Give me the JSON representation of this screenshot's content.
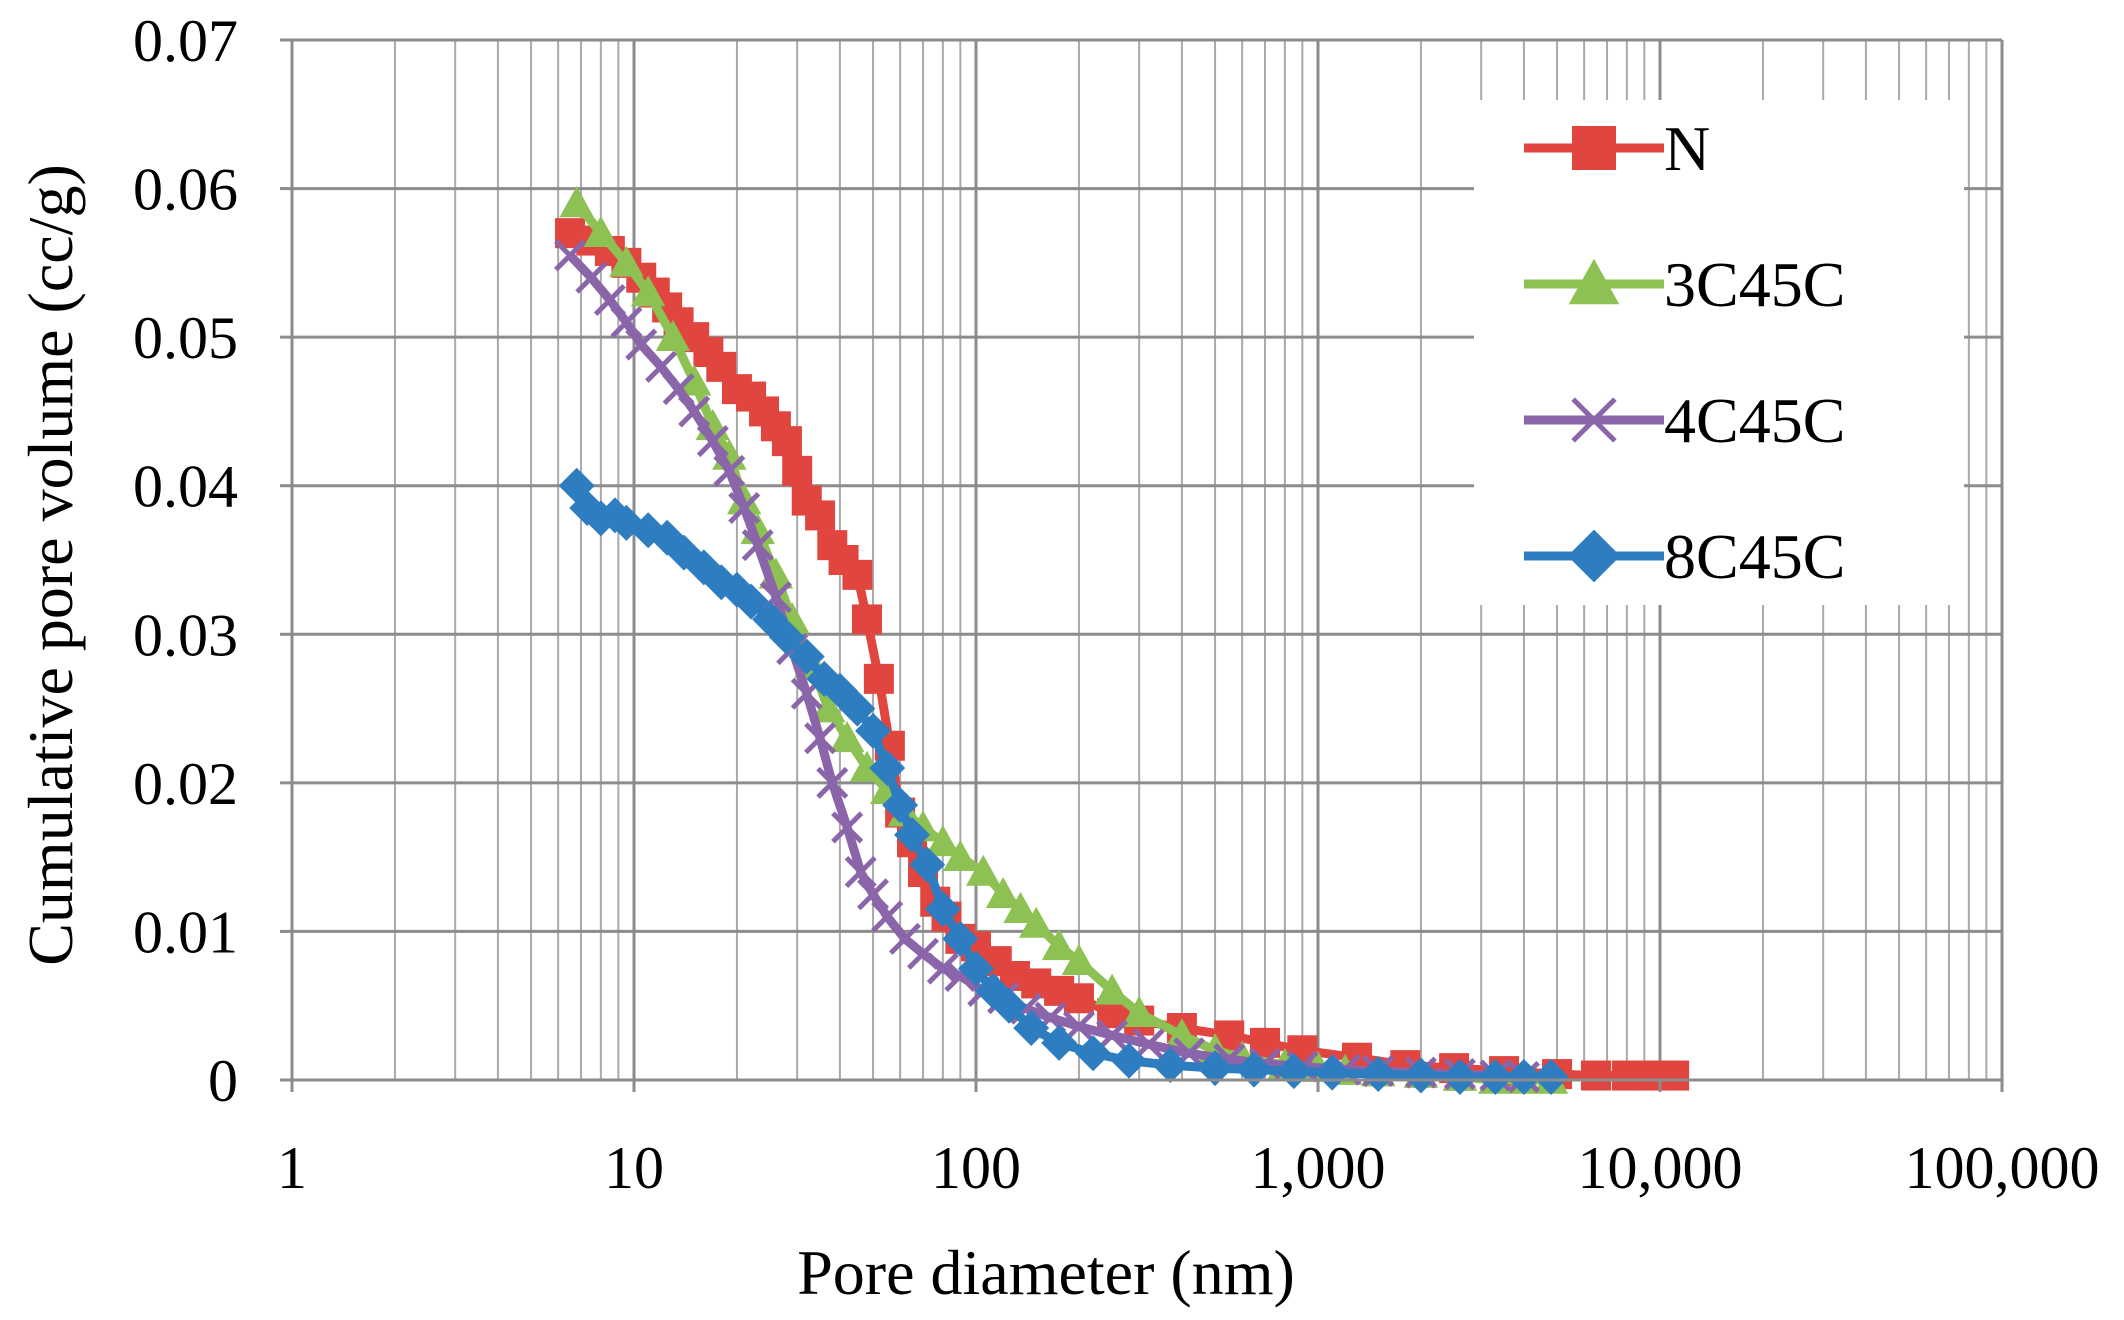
{
  "chart_data": {
    "type": "line",
    "title": "",
    "xlabel": "Pore diameter (nm)",
    "ylabel": "Cumulative pore volume (cc/g)",
    "xscale": "log",
    "xlim": [
      1,
      100000
    ],
    "ylim": [
      0,
      0.07
    ],
    "grid": true,
    "legend_position": "top-right",
    "x_ticks": [
      1,
      10,
      100,
      1000,
      10000,
      100000
    ],
    "x_tick_labels": [
      "1",
      "10",
      "100",
      "1,000",
      "10,000",
      "100,000"
    ],
    "y_ticks": [
      0,
      0.01,
      0.02,
      0.03,
      0.04,
      0.05,
      0.06,
      0.07
    ],
    "y_tick_labels": [
      "0",
      "0.01",
      "0.02",
      "0.03",
      "0.04",
      "0.05",
      "0.06",
      "0.07"
    ],
    "series": [
      {
        "name": "N",
        "color": "#E0463F",
        "marker": "square",
        "points": [
          [
            6.5,
            0.057
          ],
          [
            7.5,
            0.0565
          ],
          [
            8.5,
            0.0558
          ],
          [
            9.5,
            0.055
          ],
          [
            10.5,
            0.054
          ],
          [
            11.5,
            0.053
          ],
          [
            12.5,
            0.052
          ],
          [
            13.5,
            0.051
          ],
          [
            15,
            0.05
          ],
          [
            16.5,
            0.049
          ],
          [
            18,
            0.048
          ],
          [
            20,
            0.0465
          ],
          [
            22,
            0.046
          ],
          [
            24,
            0.045
          ],
          [
            26,
            0.044
          ],
          [
            28,
            0.043
          ],
          [
            30,
            0.041
          ],
          [
            32,
            0.039
          ],
          [
            35,
            0.038
          ],
          [
            38,
            0.036
          ],
          [
            41,
            0.035
          ],
          [
            45,
            0.034
          ],
          [
            48,
            0.031
          ],
          [
            52,
            0.027
          ],
          [
            56,
            0.0225
          ],
          [
            60,
            0.018
          ],
          [
            65,
            0.016
          ],
          [
            70,
            0.014
          ],
          [
            76,
            0.012
          ],
          [
            82,
            0.011
          ],
          [
            90,
            0.0095
          ],
          [
            100,
            0.009
          ],
          [
            115,
            0.008
          ],
          [
            130,
            0.007
          ],
          [
            150,
            0.0065
          ],
          [
            175,
            0.006
          ],
          [
            200,
            0.0055
          ],
          [
            250,
            0.0045
          ],
          [
            300,
            0.004
          ],
          [
            400,
            0.0035
          ],
          [
            550,
            0.003
          ],
          [
            700,
            0.0025
          ],
          [
            900,
            0.002
          ],
          [
            1300,
            0.0015
          ],
          [
            1800,
            0.001
          ],
          [
            2500,
            0.0008
          ],
          [
            3500,
            0.0006
          ],
          [
            5000,
            0.0004
          ],
          [
            6500,
            0.0003
          ],
          [
            8000,
            0.0003
          ],
          [
            9500,
            0.0003
          ],
          [
            11000,
            0.0003
          ]
        ]
      },
      {
        "name": "3C45C",
        "color": "#8DC153",
        "marker": "triangle",
        "points": [
          [
            6.8,
            0.059
          ],
          [
            8,
            0.057
          ],
          [
            9.5,
            0.055
          ],
          [
            11,
            0.053
          ],
          [
            13,
            0.05
          ],
          [
            15,
            0.047
          ],
          [
            17,
            0.044
          ],
          [
            19,
            0.042
          ],
          [
            21,
            0.039
          ],
          [
            23,
            0.037
          ],
          [
            26,
            0.034
          ],
          [
            29,
            0.031
          ],
          [
            33,
            0.028
          ],
          [
            37,
            0.025
          ],
          [
            42,
            0.023
          ],
          [
            48,
            0.021
          ],
          [
            55,
            0.0195
          ],
          [
            62,
            0.018
          ],
          [
            70,
            0.017
          ],
          [
            80,
            0.016
          ],
          [
            90,
            0.015
          ],
          [
            105,
            0.014
          ],
          [
            120,
            0.0125
          ],
          [
            135,
            0.0115
          ],
          [
            150,
            0.0105
          ],
          [
            175,
            0.009
          ],
          [
            200,
            0.008
          ],
          [
            250,
            0.006
          ],
          [
            300,
            0.0045
          ],
          [
            400,
            0.003
          ],
          [
            500,
            0.002
          ],
          [
            600,
            0.0015
          ],
          [
            800,
            0.001
          ],
          [
            1000,
            0.0008
          ],
          [
            1200,
            0.0006
          ],
          [
            1500,
            0.0005
          ],
          [
            2000,
            0.0004
          ],
          [
            2600,
            0.0002
          ],
          [
            3300,
            0
          ],
          [
            4000,
            0
          ],
          [
            4800,
            0
          ]
        ]
      },
      {
        "name": "4C45C",
        "color": "#8A65AA",
        "marker": "x",
        "points": [
          [
            6.5,
            0.0555
          ],
          [
            7.5,
            0.054
          ],
          [
            8.5,
            0.0525
          ],
          [
            9.5,
            0.051
          ],
          [
            10.5,
            0.0495
          ],
          [
            12,
            0.048
          ],
          [
            13.5,
            0.0465
          ],
          [
            15,
            0.045
          ],
          [
            17,
            0.043
          ],
          [
            19,
            0.041
          ],
          [
            21,
            0.0385
          ],
          [
            23,
            0.036
          ],
          [
            26,
            0.0325
          ],
          [
            29,
            0.029
          ],
          [
            32,
            0.026
          ],
          [
            35,
            0.023
          ],
          [
            38,
            0.02
          ],
          [
            42,
            0.017
          ],
          [
            46,
            0.014
          ],
          [
            50,
            0.0125
          ],
          [
            55,
            0.011
          ],
          [
            62,
            0.0095
          ],
          [
            70,
            0.0085
          ],
          [
            80,
            0.0075
          ],
          [
            90,
            0.007
          ],
          [
            105,
            0.006
          ],
          [
            120,
            0.0055
          ],
          [
            140,
            0.0048
          ],
          [
            165,
            0.0042
          ],
          [
            200,
            0.0036
          ],
          [
            250,
            0.003
          ],
          [
            320,
            0.0024
          ],
          [
            420,
            0.0018
          ],
          [
            550,
            0.0014
          ],
          [
            700,
            0.0011
          ],
          [
            900,
            0.0009
          ],
          [
            1200,
            0.0007
          ],
          [
            1500,
            0.0006
          ],
          [
            2000,
            0.0005
          ],
          [
            2600,
            0.0004
          ],
          [
            3300,
            0.0003
          ],
          [
            4000,
            0.0002
          ]
        ]
      },
      {
        "name": "8C45C",
        "color": "#2E7DC0",
        "marker": "diamond",
        "points": [
          [
            6.8,
            0.04
          ],
          [
            7.3,
            0.0385
          ],
          [
            8,
            0.0378
          ],
          [
            8.8,
            0.038
          ],
          [
            9.5,
            0.0375
          ],
          [
            11,
            0.037
          ],
          [
            12.5,
            0.0365
          ],
          [
            14,
            0.0355
          ],
          [
            16,
            0.0345
          ],
          [
            18,
            0.0335
          ],
          [
            20,
            0.033
          ],
          [
            22,
            0.0322
          ],
          [
            25,
            0.031
          ],
          [
            28,
            0.0298
          ],
          [
            32,
            0.0285
          ],
          [
            36,
            0.027
          ],
          [
            40,
            0.0262
          ],
          [
            45,
            0.025
          ],
          [
            50,
            0.0235
          ],
          [
            55,
            0.021
          ],
          [
            60,
            0.0185
          ],
          [
            65,
            0.0165
          ],
          [
            72,
            0.0145
          ],
          [
            80,
            0.0115
          ],
          [
            90,
            0.0095
          ],
          [
            100,
            0.0075
          ],
          [
            112,
            0.006
          ],
          [
            125,
            0.005
          ],
          [
            145,
            0.0035
          ],
          [
            175,
            0.0025
          ],
          [
            220,
            0.0018
          ],
          [
            280,
            0.0013
          ],
          [
            370,
            0.001
          ],
          [
            500,
            0.0008
          ],
          [
            650,
            0.0007
          ],
          [
            850,
            0.0006
          ],
          [
            1100,
            0.0005
          ],
          [
            1500,
            0.0004
          ],
          [
            2000,
            0.0003
          ],
          [
            2600,
            0.0002
          ],
          [
            3300,
            0.0002
          ],
          [
            4000,
            0.0002
          ],
          [
            4800,
            0.0002
          ]
        ]
      }
    ]
  }
}
